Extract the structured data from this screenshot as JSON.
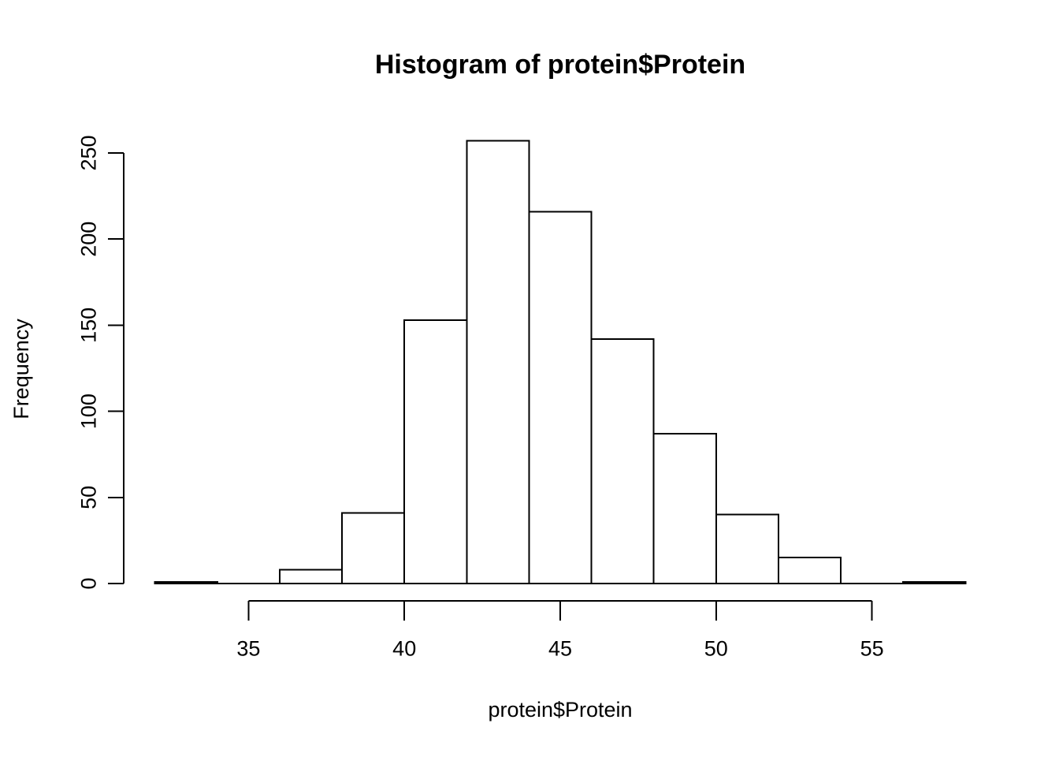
{
  "figure": {
    "title": "Histogram of protein$Protein",
    "xlabel": "protein$Protein",
    "ylabel": "Frequency",
    "background_color": "#ffffff",
    "line_color": "#000000"
  },
  "chart_data": {
    "type": "bar",
    "subtype": "histogram",
    "title": "Histogram of protein$Protein",
    "xlabel": "protein$Protein",
    "ylabel": "Frequency",
    "bin_edges": [
      32,
      34,
      36,
      38,
      40,
      42,
      44,
      46,
      48,
      50,
      52,
      54,
      56,
      58
    ],
    "counts": [
      1,
      0,
      8,
      41,
      153,
      257,
      216,
      142,
      87,
      40,
      15,
      0,
      1
    ],
    "categories": [
      "32-34",
      "34-36",
      "36-38",
      "38-40",
      "40-42",
      "42-44",
      "44-46",
      "46-48",
      "48-50",
      "50-52",
      "52-54",
      "54-56",
      "56-58"
    ],
    "x_ticks": [
      35,
      40,
      45,
      50,
      55
    ],
    "y_ticks": [
      0,
      50,
      100,
      150,
      200,
      250
    ],
    "xlim": [
      32,
      58
    ],
    "ylim": [
      0,
      257
    ],
    "grid": false,
    "legend": null,
    "bar_fill": "#ffffff",
    "bar_stroke": "#000000",
    "axis_color": "#000000"
  }
}
